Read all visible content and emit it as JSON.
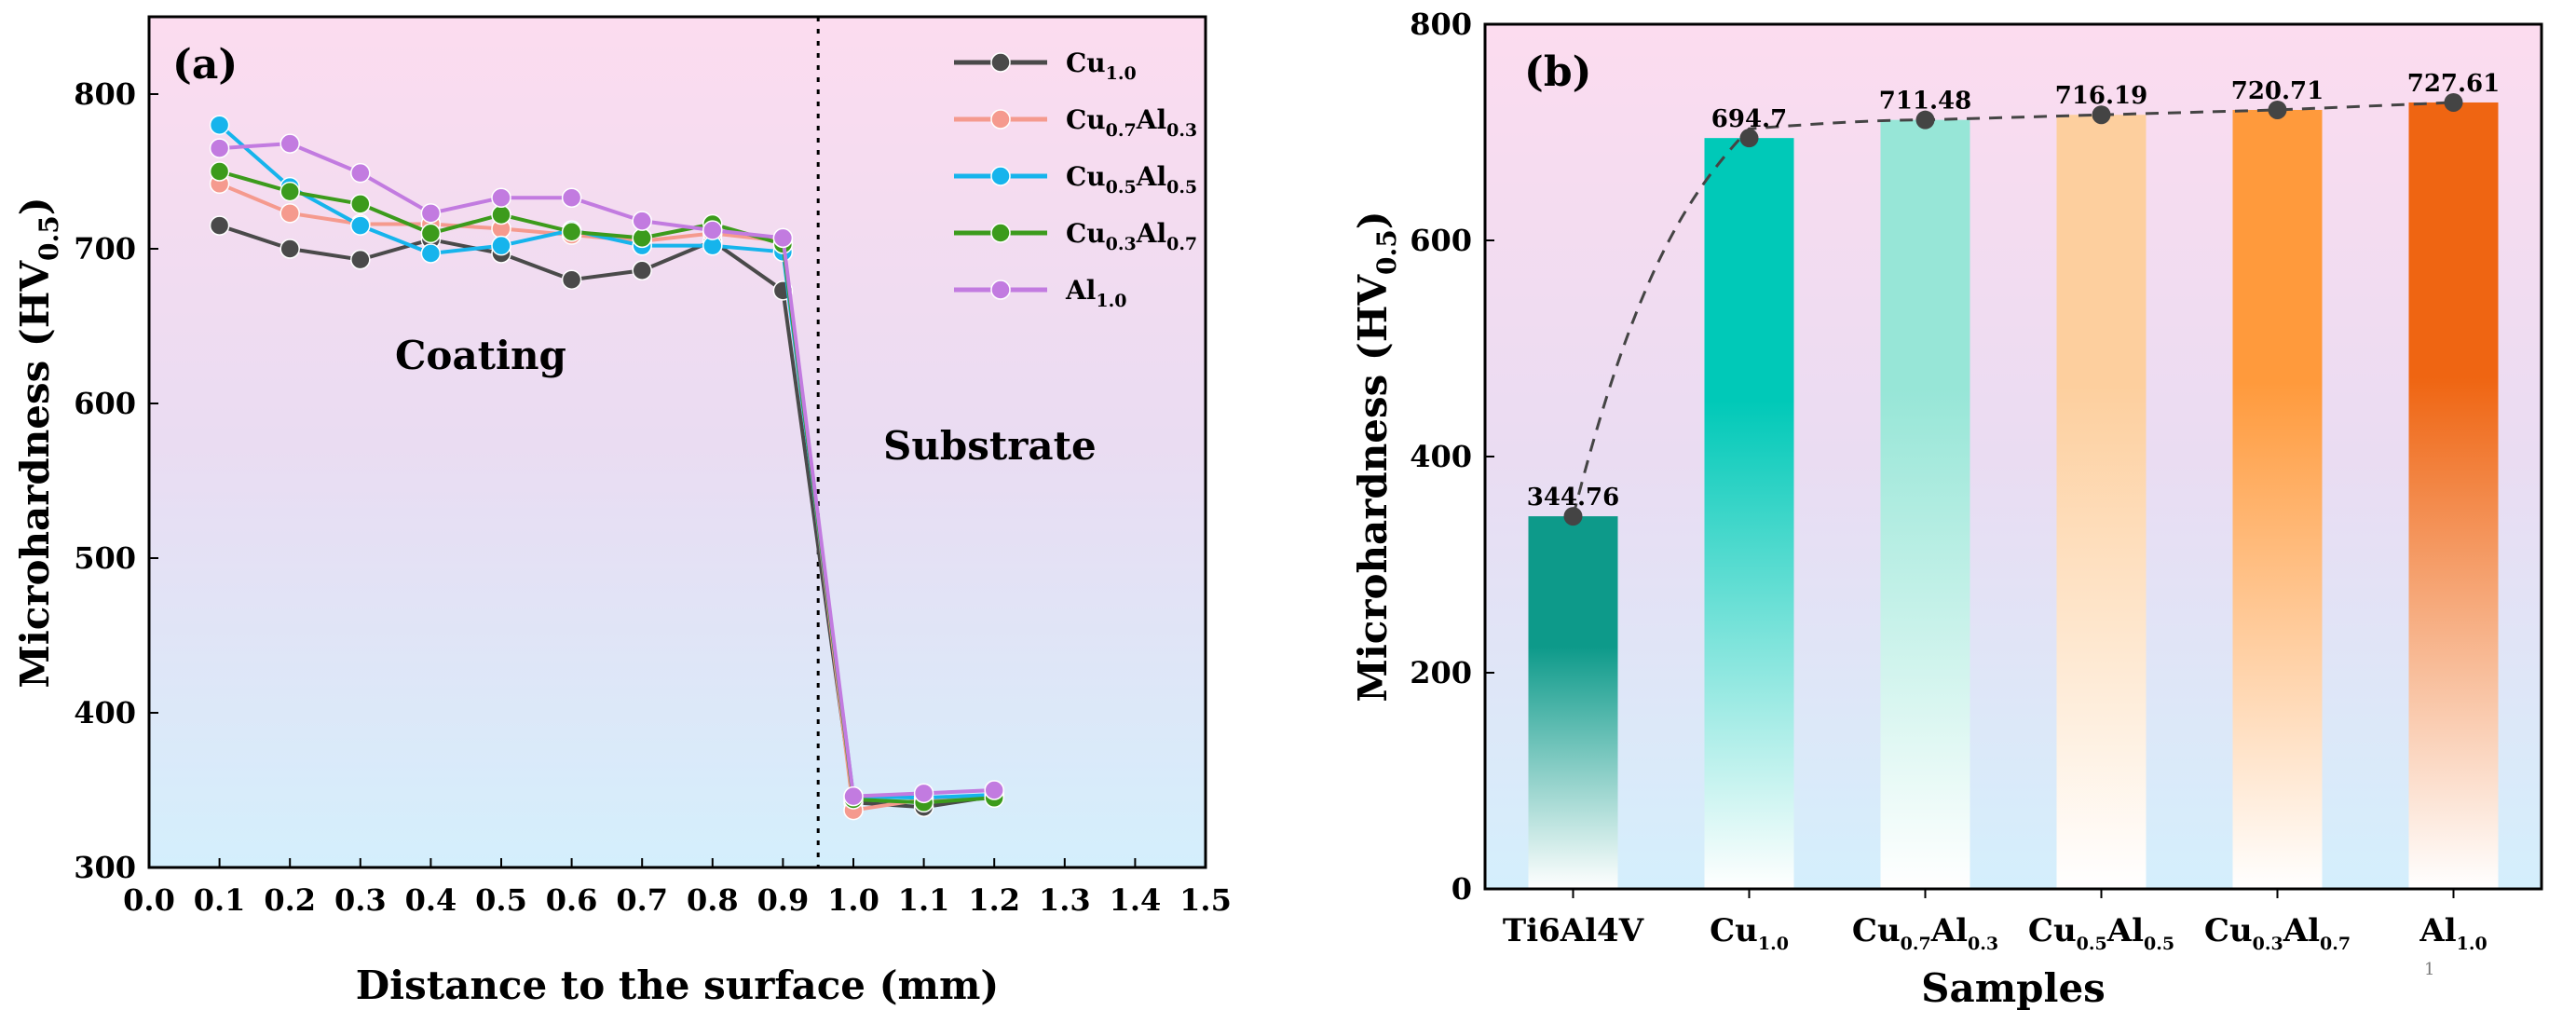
{
  "page_number": "1",
  "chart_data": [
    {
      "type": "line",
      "panel_label": "(a)",
      "xlabel": "Distance to the surface (mm)",
      "ylabel": {
        "main": "Microhardness (HV",
        "sub": "0.5",
        "close": ")"
      },
      "xlim": [
        0.0,
        1.5
      ],
      "ylim": [
        300,
        850
      ],
      "x_ticks": [
        "0.0",
        "0.1",
        "0.2",
        "0.3",
        "0.4",
        "0.5",
        "0.6",
        "0.7",
        "0.8",
        "0.9",
        "1.0",
        "1.1",
        "1.2",
        "1.3",
        "1.4",
        "1.5"
      ],
      "y_ticks": [
        "300",
        "400",
        "500",
        "600",
        "700",
        "800"
      ],
      "divider_x": 0.95,
      "annotations": {
        "coating": "Coating",
        "substrate": "Substrate"
      },
      "legend_placement": "top-right",
      "x": [
        0.1,
        0.2,
        0.3,
        0.4,
        0.5,
        0.6,
        0.7,
        0.8,
        0.9,
        1.0,
        1.1,
        1.2
      ],
      "series": [
        {
          "name": {
            "parts": [
              [
                "Cu",
                "1.0"
              ]
            ]
          },
          "color": "#4a4a4a",
          "values": [
            715,
            700,
            693,
            706,
            697,
            680,
            686,
            705,
            673,
            342,
            339,
            346
          ]
        },
        {
          "name": {
            "parts": [
              [
                "Cu",
                "0.7"
              ],
              [
                "Al",
                "0.3"
              ]
            ]
          },
          "color": "#f59a8e",
          "values": [
            742,
            723,
            716,
            716,
            713,
            709,
            705,
            710,
            705,
            337,
            344,
            347
          ]
        },
        {
          "name": {
            "parts": [
              [
                "Cu",
                "0.5"
              ],
              [
                "Al",
                "0.5"
              ]
            ]
          },
          "color": "#16b4ec",
          "values": [
            780,
            740,
            715,
            697,
            702,
            712,
            702,
            702,
            698,
            346,
            345,
            347
          ]
        },
        {
          "name": {
            "parts": [
              [
                "Cu",
                "0.3"
              ],
              [
                "Al",
                "0.7"
              ]
            ]
          },
          "color": "#3c9b1c",
          "values": [
            750,
            737,
            729,
            710,
            722,
            711,
            707,
            716,
            703,
            344,
            342,
            345
          ]
        },
        {
          "name": {
            "parts": [
              [
                "Al",
                "1.0"
              ]
            ]
          },
          "color": "#c27be0",
          "values": [
            765,
            768,
            749,
            723,
            733,
            733,
            718,
            712,
            707,
            346,
            348,
            350
          ]
        }
      ]
    },
    {
      "type": "bar",
      "panel_label": "(b)",
      "xlabel": "Samples",
      "ylabel": {
        "main": "Microhardness (HV",
        "sub": "0.5",
        "close": ")"
      },
      "ylim": [
        0,
        800
      ],
      "y_ticks": [
        "0",
        "200",
        "400",
        "600",
        "800"
      ],
      "categories": [
        {
          "parts": [
            [
              "Ti6Al4V",
              ""
            ]
          ]
        },
        {
          "parts": [
            [
              "Cu",
              "1.0"
            ]
          ]
        },
        {
          "parts": [
            [
              "Cu",
              "0.7"
            ],
            [
              "Al",
              "0.3"
            ]
          ]
        },
        {
          "parts": [
            [
              "Cu",
              "0.5"
            ],
            [
              "Al",
              "0.5"
            ]
          ]
        },
        {
          "parts": [
            [
              "Cu",
              "0.3"
            ],
            [
              "Al",
              "0.7"
            ]
          ]
        },
        {
          "parts": [
            [
              "Al",
              "1.0"
            ]
          ]
        }
      ],
      "values": [
        344.76,
        694.7,
        711.48,
        716.19,
        720.71,
        727.61
      ],
      "value_labels": [
        "344.76",
        "694.7",
        "711.48",
        "716.19",
        "720.71",
        "727.61"
      ],
      "bar_colors": [
        [
          "#0d9a8a",
          "#ffffff"
        ],
        [
          "#00c9b8",
          "#ffffff"
        ],
        [
          "#97e6d7",
          "#ffffff"
        ],
        [
          "#fdcf9e",
          "#ffffff"
        ],
        [
          "#ff9a3c",
          "#ffffff"
        ],
        [
          "#ef6512",
          "#ffffff"
        ]
      ],
      "trend_line": "dashed"
    }
  ]
}
